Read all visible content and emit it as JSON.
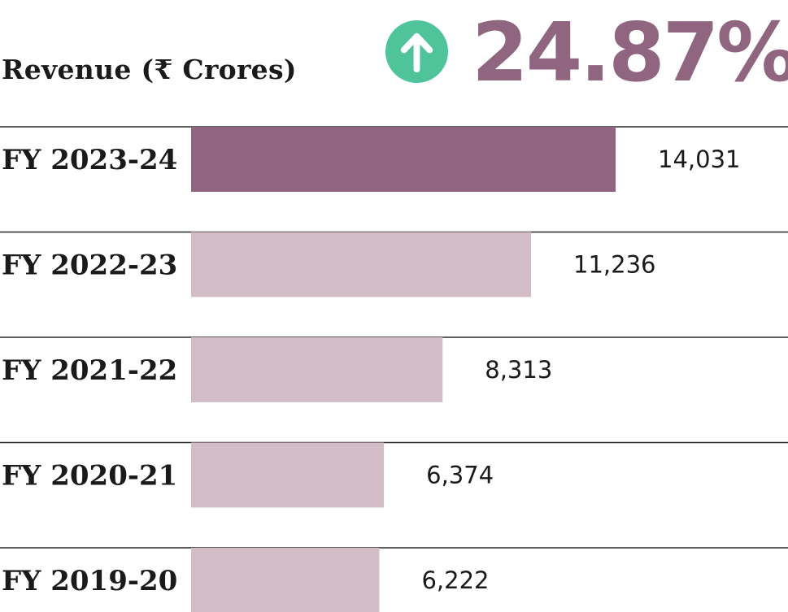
{
  "header": {
    "title": "Revenue (₹ Crores)",
    "growth": "24.87%",
    "growth_icon": "arrow-up-circle-icon"
  },
  "colors": {
    "highlight_bar": "#90657f",
    "muted_bar": "#d3bec7",
    "growth_text": "#90657f",
    "growth_icon_bg": "#4fc39a",
    "rule": "#2a2a2a"
  },
  "chart_data": {
    "type": "bar",
    "orientation": "horizontal",
    "title": "Revenue (₹ Crores)",
    "categories": [
      "FY 2023-24",
      "FY 2022-23",
      "FY 2021-22",
      "FY 2020-21",
      "FY 2019-20"
    ],
    "values": [
      14031,
      11236,
      8313,
      6374,
      6222
    ],
    "value_labels": [
      "14,031",
      "11,236",
      "8,313",
      "6,374",
      "6,222"
    ],
    "highlight_index": 0,
    "xlim": [
      0,
      14031
    ],
    "grid": false,
    "legend": "none"
  }
}
